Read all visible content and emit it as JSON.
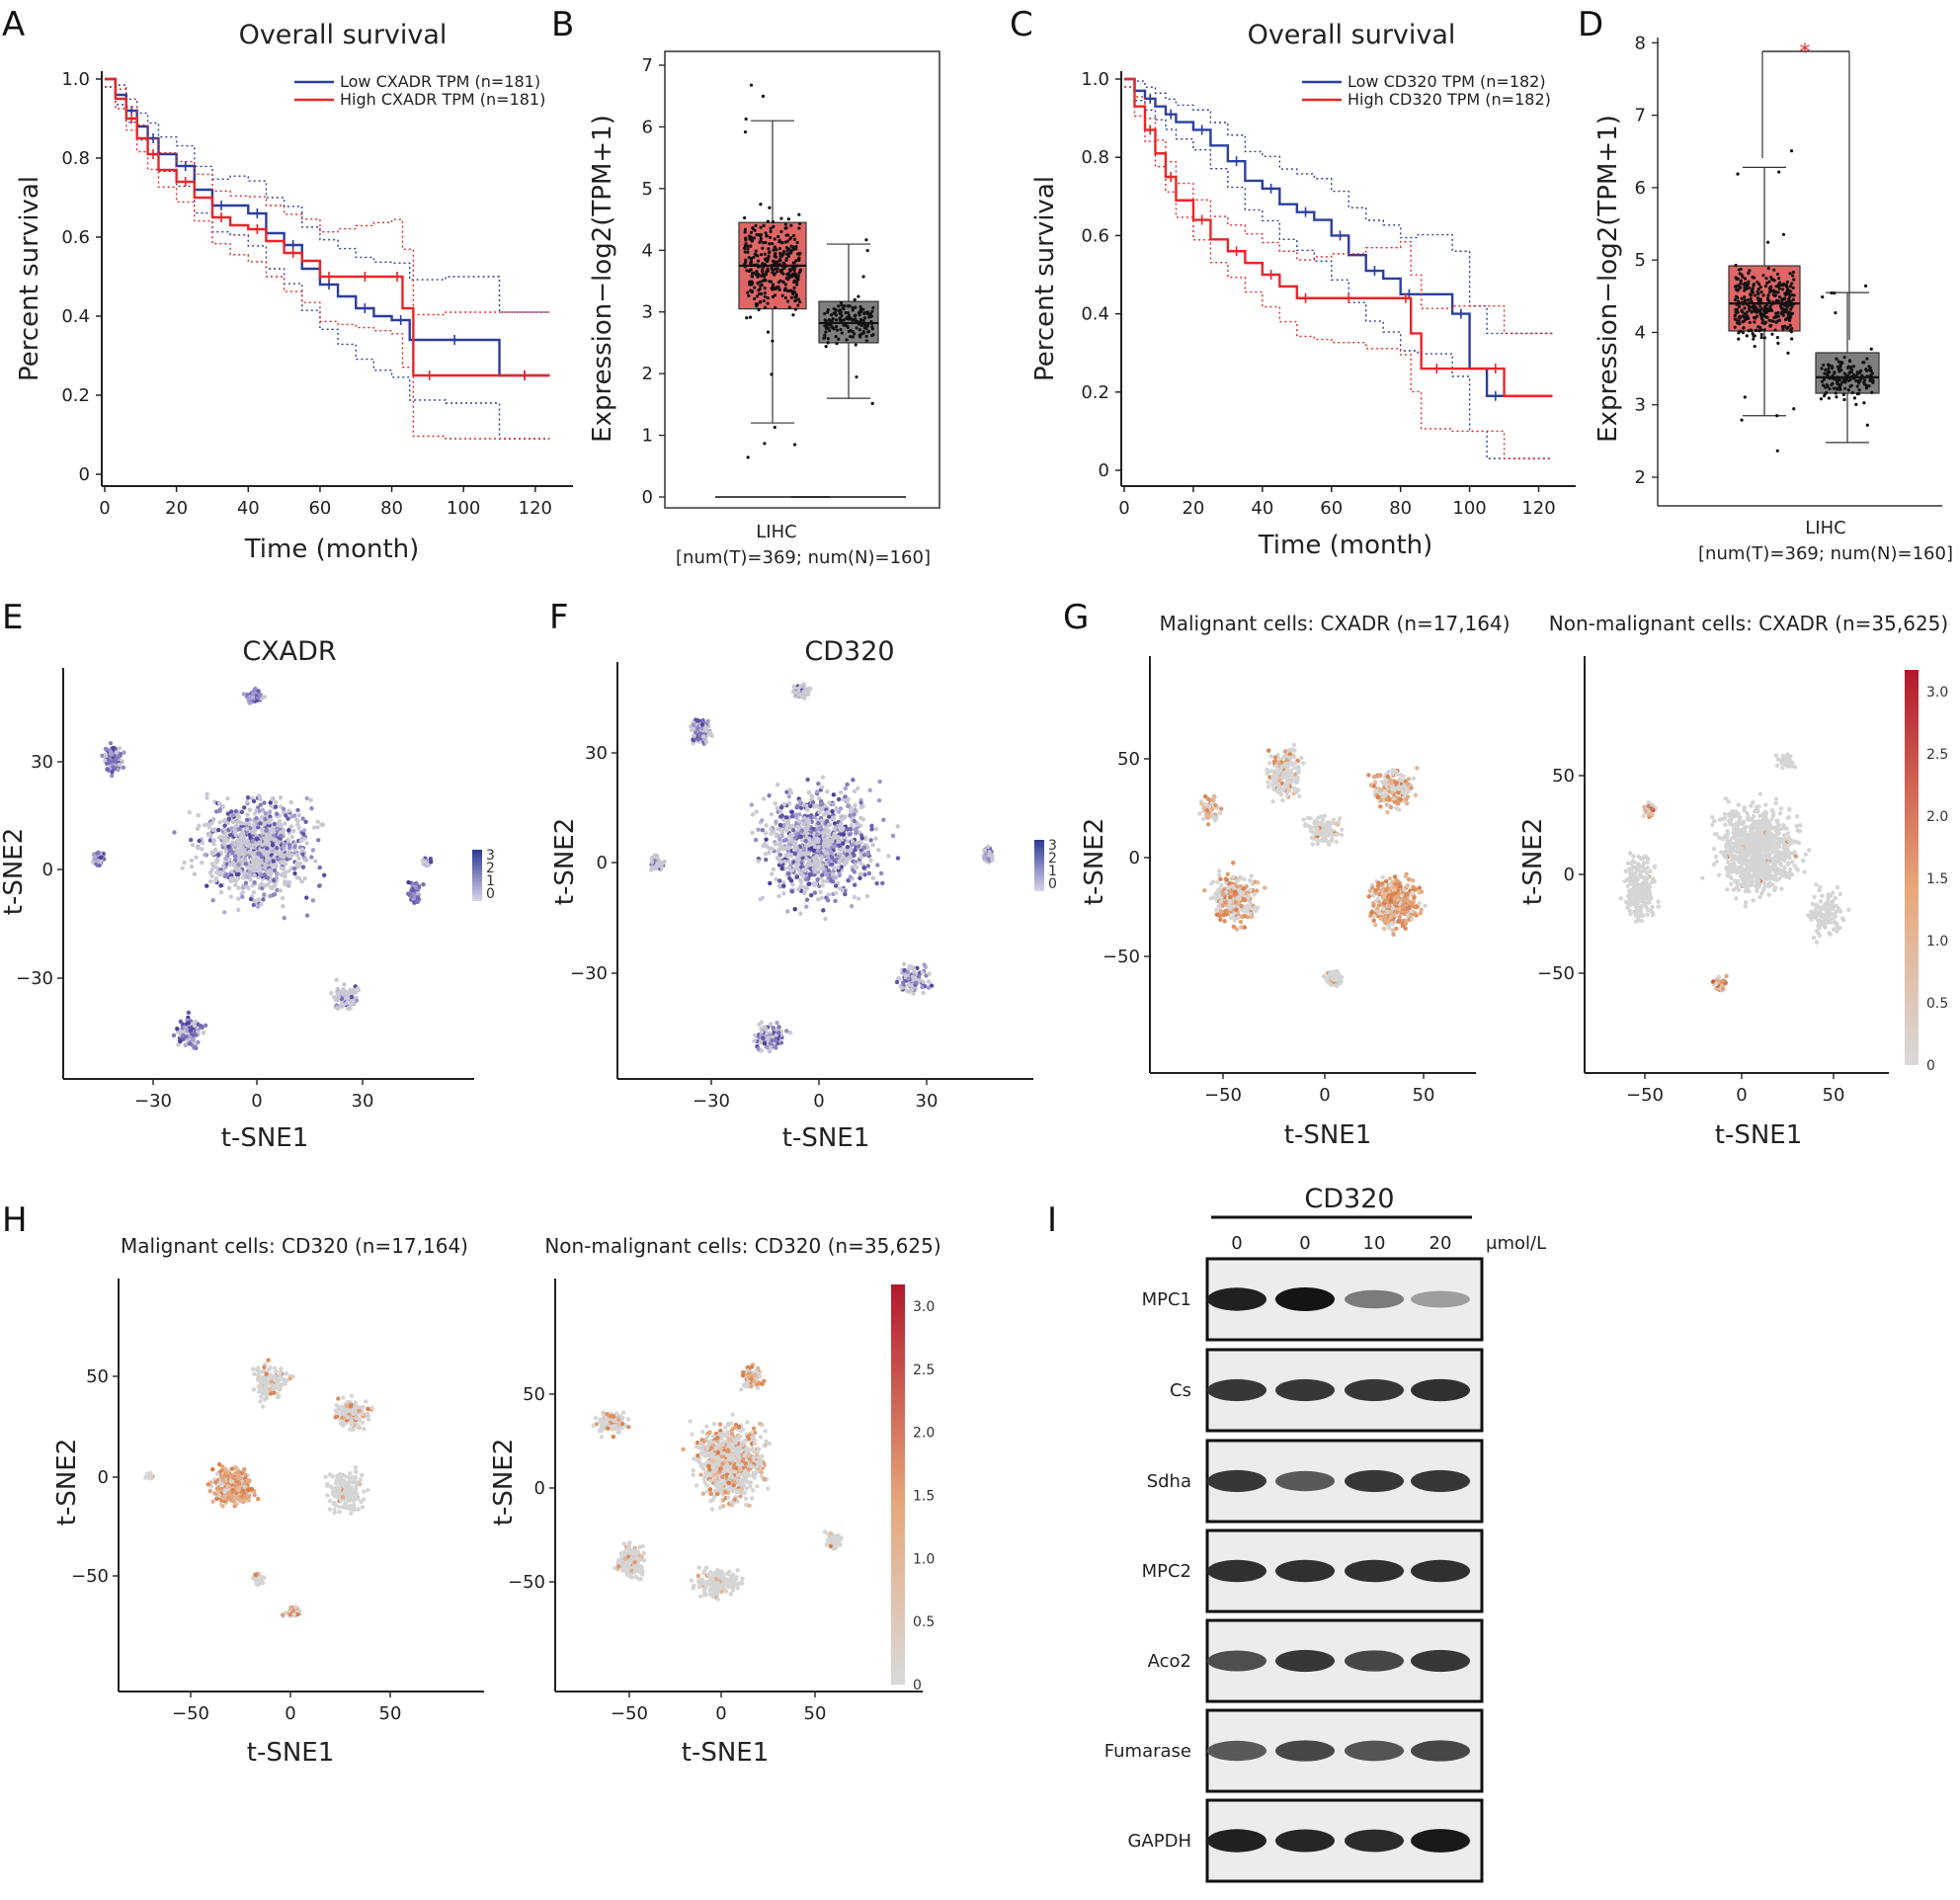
{
  "panels": {
    "A": "A",
    "B": "B",
    "C": "C",
    "D": "D",
    "E": "E",
    "F": "F",
    "G": "G",
    "H": "H",
    "I": "I"
  },
  "colors": {
    "low": "#2b3f9e",
    "high": "#e8262a",
    "tumor": "#e06666",
    "normal": "#7f7f7f",
    "tsne_base": "#c9c9d4",
    "tsne_expr": "#4b3c9b",
    "heat_low": "#d9d9d9",
    "heat_high": "#b2182b"
  },
  "chart_data": [
    {
      "id": "A",
      "type": "line",
      "title": "Overall survival",
      "xlabel": "Time (month)",
      "ylabel": "Percent survival",
      "xlim": [
        0,
        125
      ],
      "ylim": [
        0,
        1.0
      ],
      "xticks": [
        "0",
        "20",
        "40",
        "60",
        "80",
        "100",
        "120"
      ],
      "yticks": [
        "0",
        "0.2",
        "0.4",
        "0.6",
        "0.8",
        "1.0"
      ],
      "legend_position": "top-right",
      "series": [
        {
          "name": "Low CXADR TPM (n=181)",
          "color": "low",
          "x": [
            0,
            3,
            6,
            9,
            12,
            15,
            20,
            25,
            30,
            35,
            40,
            45,
            50,
            55,
            60,
            65,
            70,
            75,
            80,
            85,
            95,
            100,
            110,
            124
          ],
          "y": [
            1.0,
            0.96,
            0.92,
            0.88,
            0.85,
            0.81,
            0.78,
            0.72,
            0.68,
            0.68,
            0.66,
            0.61,
            0.58,
            0.52,
            0.48,
            0.45,
            0.42,
            0.4,
            0.39,
            0.34,
            0.34,
            0.34,
            0.25,
            0.25
          ]
        },
        {
          "name": "High CXADR TPM (n=181)",
          "color": "high",
          "x": [
            0,
            3,
            6,
            9,
            12,
            15,
            20,
            25,
            30,
            35,
            40,
            45,
            50,
            55,
            60,
            65,
            70,
            75,
            80,
            83,
            86,
            95,
            110,
            124
          ],
          "y": [
            1.0,
            0.95,
            0.9,
            0.85,
            0.81,
            0.77,
            0.74,
            0.7,
            0.65,
            0.63,
            0.62,
            0.59,
            0.56,
            0.54,
            0.5,
            0.5,
            0.5,
            0.5,
            0.5,
            0.42,
            0.25,
            0.25,
            0.25,
            0.25
          ]
        }
      ]
    },
    {
      "id": "B",
      "type": "box",
      "ylabel": "Expression−log2(TPM+1)",
      "ylim": [
        0,
        7
      ],
      "yticks": [
        "0",
        "1",
        "2",
        "3",
        "4",
        "5",
        "6",
        "7"
      ],
      "category": "LIHC",
      "note": "[num(T)=369; num(N)=160]",
      "boxes": [
        {
          "group": "T",
          "color": "tumor",
          "min": 1.2,
          "q1": 3.05,
          "median": 3.75,
          "q3": 4.45,
          "max": 6.1
        },
        {
          "group": "N",
          "color": "normal",
          "min": 1.6,
          "q1": 2.5,
          "median": 2.82,
          "q3": 3.17,
          "max": 4.1
        }
      ]
    },
    {
      "id": "C",
      "type": "line",
      "title": "Overall survival",
      "xlabel": "Time (month)",
      "ylabel": "Percent survival",
      "xlim": [
        0,
        125
      ],
      "ylim": [
        0,
        1.0
      ],
      "xticks": [
        "0",
        "20",
        "40",
        "60",
        "80",
        "100",
        "120"
      ],
      "yticks": [
        "0",
        "0.2",
        "0.4",
        "0.6",
        "0.8",
        "1.0"
      ],
      "legend_position": "top-right",
      "series": [
        {
          "name": "Low CD320 TPM (n=182)",
          "color": "low",
          "x": [
            0,
            3,
            6,
            9,
            12,
            15,
            20,
            25,
            30,
            35,
            40,
            45,
            50,
            55,
            60,
            65,
            70,
            75,
            80,
            85,
            95,
            100,
            105,
            110,
            124
          ],
          "y": [
            1.0,
            0.97,
            0.95,
            0.93,
            0.91,
            0.89,
            0.87,
            0.83,
            0.79,
            0.74,
            0.72,
            0.68,
            0.66,
            0.64,
            0.6,
            0.55,
            0.51,
            0.49,
            0.45,
            0.45,
            0.4,
            0.26,
            0.19,
            0.19,
            0.19
          ]
        },
        {
          "name": "High CD320 TPM (n=182)",
          "color": "high",
          "x": [
            0,
            3,
            6,
            9,
            12,
            15,
            20,
            25,
            30,
            35,
            40,
            45,
            50,
            55,
            60,
            70,
            80,
            83,
            86,
            95,
            105,
            110,
            124
          ],
          "y": [
            1.0,
            0.93,
            0.87,
            0.81,
            0.75,
            0.69,
            0.64,
            0.59,
            0.56,
            0.53,
            0.5,
            0.47,
            0.44,
            0.44,
            0.44,
            0.44,
            0.44,
            0.35,
            0.26,
            0.26,
            0.26,
            0.19,
            0.19
          ]
        }
      ]
    },
    {
      "id": "D",
      "type": "box",
      "ylabel": "Expression−log2(TPM+1)",
      "ylim": [
        1.7,
        8.1
      ],
      "yticks": [
        "2",
        "3",
        "4",
        "5",
        "6",
        "7",
        "8"
      ],
      "category": "LIHC",
      "note": "[num(T)=369; num(N)=160]",
      "significance": "*",
      "boxes": [
        {
          "group": "T",
          "color": "tumor",
          "min": 2.85,
          "q1": 4.02,
          "median": 4.4,
          "q3": 4.92,
          "max": 6.28
        },
        {
          "group": "N",
          "color": "normal",
          "min": 2.48,
          "q1": 3.16,
          "median": 3.38,
          "q3": 3.72,
          "max": 4.55
        }
      ]
    },
    {
      "id": "E",
      "type": "scatter",
      "title": "CXADR",
      "xlabel": "t-SNE1",
      "ylabel": "t-SNE2",
      "xticks": [
        "−30",
        "0",
        "30"
      ],
      "yticks": [
        "30",
        "0",
        "−30"
      ],
      "legend_ticks": [
        "3",
        "2",
        "1",
        "0"
      ]
    },
    {
      "id": "F",
      "type": "scatter",
      "title": "CD320",
      "xlabel": "t-SNE1",
      "ylabel": "t-SNE2",
      "xticks": [
        "−30",
        "0",
        "30"
      ],
      "yticks": [
        "30",
        "0",
        "−30"
      ],
      "legend_ticks": [
        "3",
        "2",
        "1",
        "0"
      ]
    },
    {
      "id": "G1",
      "type": "scatter",
      "title": "Malignant cells: CXADR (n=17,164)",
      "xlabel": "t-SNE1",
      "ylabel": "t-SNE2",
      "xticks": [
        "−50",
        "0",
        "50"
      ],
      "yticks": [
        "50",
        "0",
        "−50"
      ]
    },
    {
      "id": "G2",
      "type": "scatter",
      "title": "Non-malignant cells: CXADR (n=35,625)",
      "xlabel": "t-SNE1",
      "ylabel": "t-SNE2",
      "xticks": [
        "−50",
        "0",
        "50"
      ],
      "yticks": [
        "50",
        "0",
        "−50"
      ],
      "colorbar_ticks": [
        "3.0",
        "2.5",
        "2.0",
        "1.5",
        "1.0",
        "0.5",
        "0"
      ]
    },
    {
      "id": "H1",
      "type": "scatter",
      "title": "Malignant cells: CD320 (n=17,164)",
      "xlabel": "t-SNE1",
      "ylabel": "t-SNE2",
      "xticks": [
        "−50",
        "0",
        "50"
      ],
      "yticks": [
        "50",
        "0",
        "−50"
      ]
    },
    {
      "id": "H2",
      "type": "scatter",
      "title": "Non-malignant cells: CD320 (n=35,625)",
      "xlabel": "t-SNE1",
      "ylabel": "t-SNE2",
      "xticks": [
        "−50",
        "0",
        "50"
      ],
      "yticks": [
        "50",
        "0",
        "−50"
      ],
      "colorbar_ticks": [
        "3.0",
        "2.5",
        "2.0",
        "1.5",
        "1.0",
        "0.5",
        "0"
      ]
    }
  ],
  "western_blot": {
    "treatment": "CD320",
    "doses": [
      "0",
      "0",
      "10",
      "20"
    ],
    "unit": "μmol/L",
    "proteins": [
      {
        "name": "MPC1",
        "intensity": [
          0.95,
          1.0,
          0.55,
          0.4
        ]
      },
      {
        "name": "Cs",
        "intensity": [
          0.85,
          0.85,
          0.85,
          0.88
        ]
      },
      {
        "name": "Sdha",
        "intensity": [
          0.85,
          0.7,
          0.85,
          0.85
        ]
      },
      {
        "name": "MPC2",
        "intensity": [
          0.88,
          0.88,
          0.88,
          0.88
        ]
      },
      {
        "name": "Aco2",
        "intensity": [
          0.75,
          0.85,
          0.78,
          0.85
        ]
      },
      {
        "name": "Fumarase",
        "intensity": [
          0.7,
          0.78,
          0.72,
          0.78
        ]
      },
      {
        "name": "GAPDH",
        "intensity": [
          0.95,
          0.92,
          0.9,
          0.98
        ]
      }
    ]
  }
}
